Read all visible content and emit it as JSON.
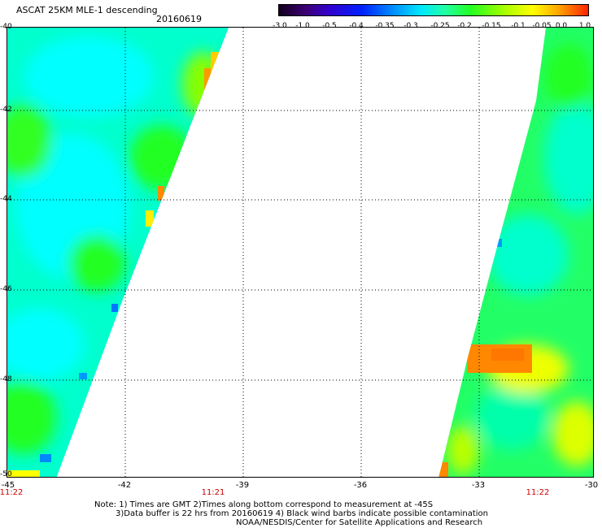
{
  "title": "ASCAT 25KM MLE-1 descending",
  "date": "20160619",
  "colorbar": {
    "ticks": [
      "-3.0",
      "-1.0",
      "-0.5",
      "-0.4",
      "-0.35",
      "-0.3",
      "-0.25",
      "-0.2",
      "-0.15",
      "-0.1",
      "-0.05",
      "0.0",
      "1.0"
    ]
  },
  "map": {
    "lat_labels": [
      "-40",
      "-42",
      "-44",
      "-46",
      "-48",
      "-50"
    ],
    "lon_labels": [
      "-45",
      "-42",
      "-39",
      "-36",
      "-33",
      "-30"
    ],
    "times": [
      "11:22",
      "11:21",
      "11:22"
    ],
    "colors": {
      "cyan": "#00ffff",
      "light_cyan": "#33ffee",
      "aqua_green": "#00ffaa",
      "green": "#22ff22",
      "yellow_green": "#99ff00",
      "yellow": "#ffff00",
      "orange": "#ff8800",
      "blue": "#0088ff"
    },
    "gridline": "dotted"
  },
  "notes": [
    "Note: 1) Times are GMT 2)Times along bottom correspond to measurement at -45S",
    "3)Data buffer is 22 hrs from 20160619 4) Black wind barbs indicate possible contamination",
    "NOAA/NESDIS/Center for Satellite Applications and Research"
  ]
}
